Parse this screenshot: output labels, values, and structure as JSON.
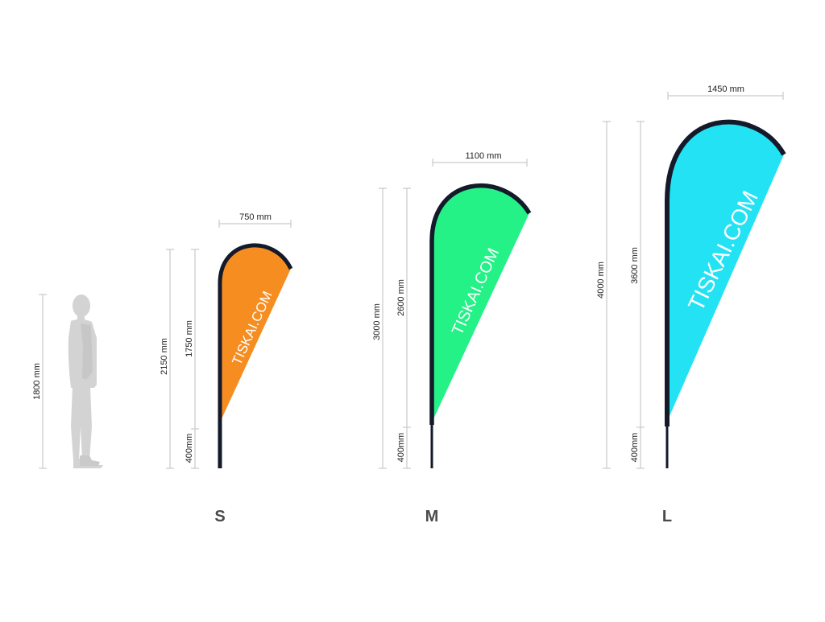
{
  "person": {
    "height_label": "1800 mm"
  },
  "flags": [
    {
      "size": "S",
      "width_label": "750 mm",
      "total_label": "2150 mm",
      "sail_label": "1750 mm",
      "pole_label": "400mm",
      "flag_text": "TISKAI.COM",
      "color": "#f68d21"
    },
    {
      "size": "M",
      "width_label": "1100 mm",
      "total_label": "3000 mm",
      "sail_label": "2600 mm",
      "pole_label": "400mm",
      "flag_text": "TISKAI.COM",
      "color": "#24f286"
    },
    {
      "size": "L",
      "width_label": "1450 mm",
      "total_label": "4000 mm",
      "sail_label": "3600 mm",
      "pole_label": "400mm",
      "flag_text": "TISKAI.COM",
      "color": "#22e2f3"
    }
  ],
  "colors": {
    "pole": "#141a2a",
    "dimension_line": "#c9c9c9",
    "silhouette": "#d3d3d3",
    "size_letter": "#4a4a4a"
  }
}
